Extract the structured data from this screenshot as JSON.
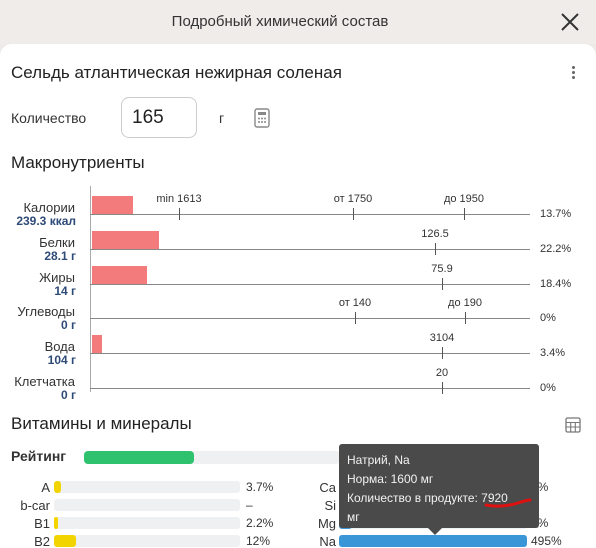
{
  "header": {
    "title": "Подробный химический состав"
  },
  "food": {
    "name": "Сельдь атлантическая нежирная соленая"
  },
  "quantity": {
    "label": "Количество",
    "value": "165",
    "unit": "г"
  },
  "macros": {
    "title": "Макронутриенты",
    "rows": [
      {
        "name": "Калории",
        "value": "239.3 ккал",
        "pct": "13.7%",
        "fraction": 0.137,
        "ticks": [
          "min 1613",
          "от 1750",
          "до 1950"
        ]
      },
      {
        "name": "Белки",
        "value": "28.1 г",
        "pct": "22.2%",
        "fraction": 0.222,
        "ticks": [
          "126.5"
        ]
      },
      {
        "name": "Жиры",
        "value": "14 г",
        "pct": "18.4%",
        "fraction": 0.184,
        "ticks": [
          "75.9"
        ]
      },
      {
        "name": "Углеводы",
        "value": "0 г",
        "pct": "0%",
        "fraction": 0,
        "ticks": [
          "от 140",
          "до 190"
        ]
      },
      {
        "name": "Вода",
        "value": "104 г",
        "pct": "3.4%",
        "fraction": 0.034,
        "ticks": [
          "3104"
        ]
      },
      {
        "name": "Клетчатка",
        "value": "0 г",
        "pct": "0%",
        "fraction": 0,
        "ticks": [
          "20"
        ]
      }
    ]
  },
  "vitamins": {
    "title": "Витамины и минералы",
    "rating_label": "Рейтинг",
    "rating_fraction": 0.43,
    "left": [
      {
        "name": "A",
        "pct": "3.7%",
        "fraction": 0.037,
        "color": "#f2d500"
      },
      {
        "name": "b-car",
        "pct": "–",
        "fraction": 0,
        "color": "#f2d500"
      },
      {
        "name": "B1",
        "pct": "2.2%",
        "fraction": 0.022,
        "color": "#f2d500"
      },
      {
        "name": "B2",
        "pct": "12%",
        "fraction": 0.12,
        "color": "#f2d500"
      }
    ],
    "right": [
      {
        "name": "Ca",
        "pct": "3%",
        "fraction": 0.03,
        "color": "#3b96d8"
      },
      {
        "name": "Si",
        "pct": "",
        "fraction": 0,
        "color": "#3b96d8"
      },
      {
        "name": "Mg",
        "pct": "7%",
        "fraction": 0.07,
        "color": "#3b96d8"
      },
      {
        "name": "Na",
        "pct": "495%",
        "fraction": 1.0,
        "color": "#3b96d8"
      }
    ]
  },
  "tooltip": {
    "line1": "Натрий, Na",
    "line2": "Норма: 1600 мг",
    "line3": "Количество в продукте: 7920",
    "line4": "мг"
  },
  "colors": {
    "macro_bar": "#f47b7b",
    "rating": "#2ec26f",
    "vitamin": "#f2d500",
    "mineral": "#3b96d8",
    "value_text": "#2e4a78"
  },
  "icons": [
    "close-icon",
    "kebab-menu-icon",
    "calculator-icon",
    "table-icon"
  ]
}
